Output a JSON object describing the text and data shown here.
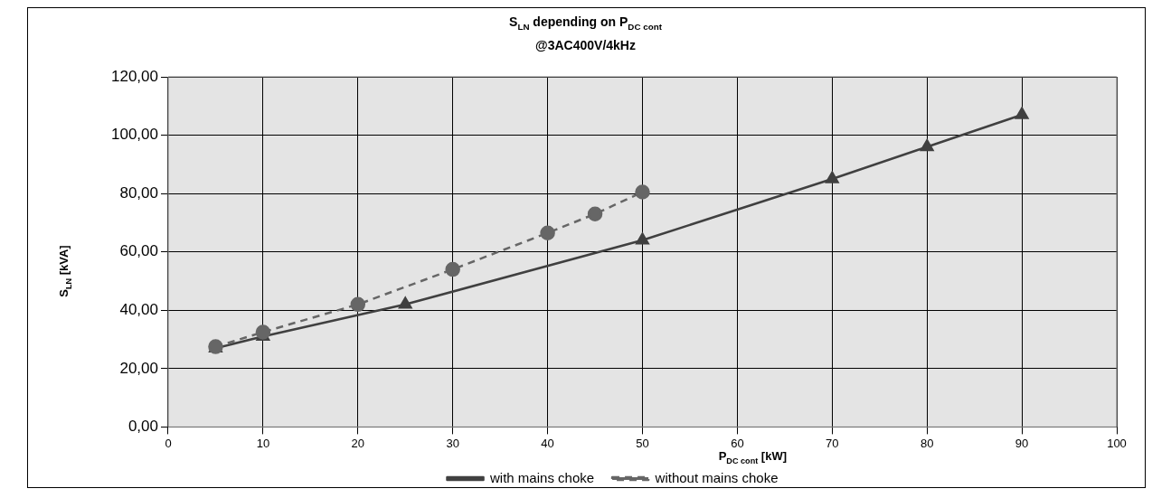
{
  "chart_data": {
    "type": "line",
    "title": "S$_{LN}$ depending on P$_{DC cont}$",
    "subtitle": "@3AC400V/4kHz",
    "xlabel": "P$_{DC cont}$ [kW]",
    "ylabel": "S$_{LN}$ [kVA]",
    "xlim": [
      0,
      100
    ],
    "xticks": [
      0,
      10,
      20,
      30,
      40,
      50,
      60,
      70,
      80,
      90,
      100
    ],
    "ylim": [
      0,
      120
    ],
    "yticks": [
      {
        "value": 0,
        "label": "0,00"
      },
      {
        "value": 20,
        "label": "20,00"
      },
      {
        "value": 40,
        "label": "40,00"
      },
      {
        "value": 60,
        "label": "60,00"
      },
      {
        "value": 80,
        "label": "80,00"
      },
      {
        "value": 100,
        "label": "100,00"
      },
      {
        "value": 120,
        "label": "120,00"
      }
    ],
    "grid": true,
    "legend": "bottom",
    "series": [
      {
        "name": "with mains choke",
        "color": "#404040",
        "marker": "triangle",
        "line_style": "solid",
        "x": [
          5,
          10,
          25,
          50,
          70,
          80,
          90
        ],
        "values": [
          27,
          31,
          42,
          64,
          85,
          96,
          107
        ]
      },
      {
        "name": "without mains choke",
        "color": "#666666",
        "marker": "circle",
        "line_style": "dashed",
        "x": [
          5,
          10,
          20,
          30,
          40,
          45,
          50
        ],
        "values": [
          27.5,
          32.5,
          42,
          54,
          66.5,
          73,
          80.5
        ]
      }
    ]
  }
}
